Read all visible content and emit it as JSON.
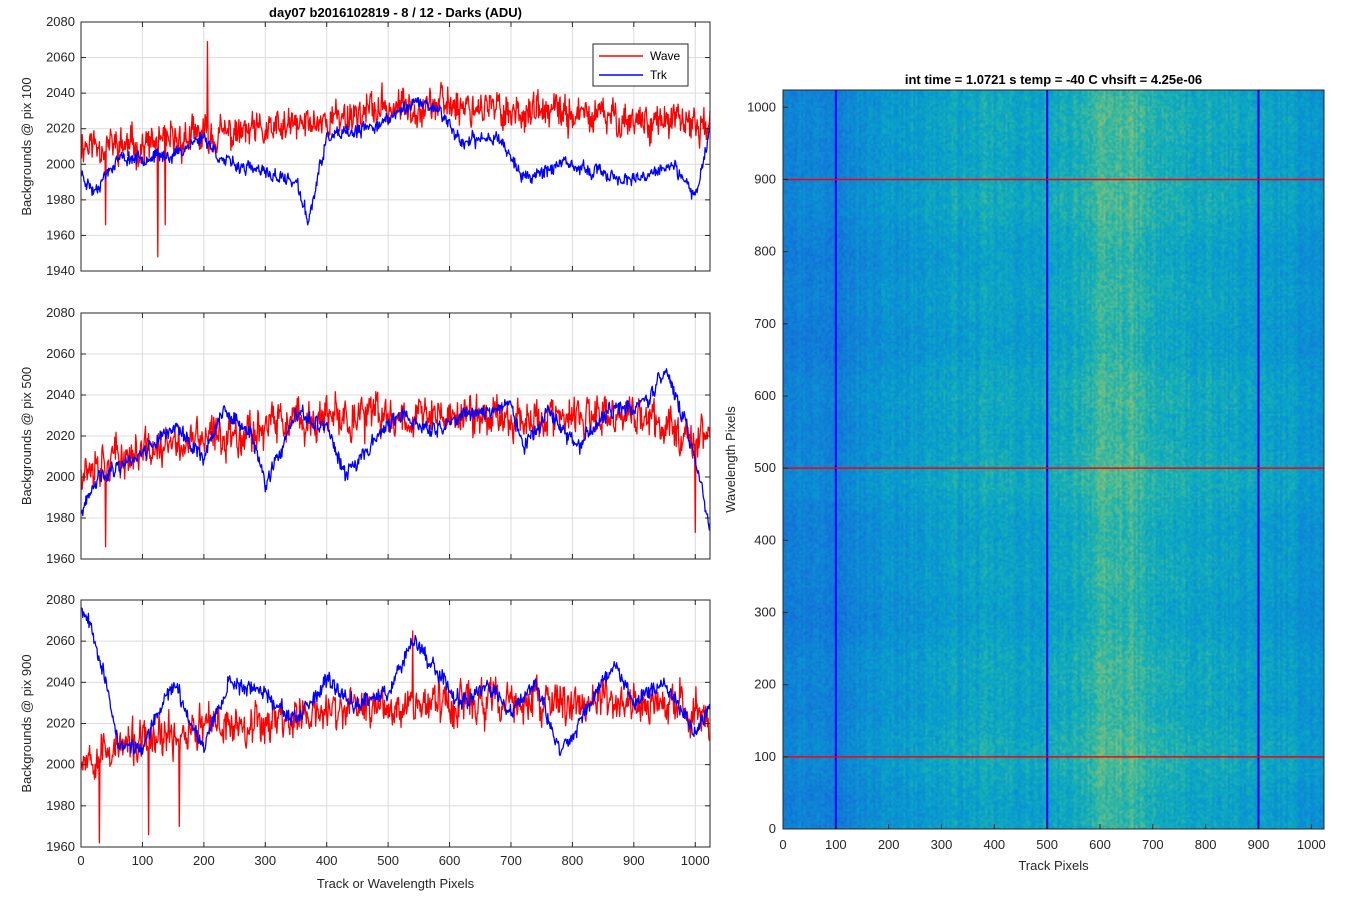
{
  "figure_title": "day07 b2016102819 - 8 / 12 - Darks (ADU)",
  "colors": {
    "wave": "#ff0000",
    "trk": "#0000ff",
    "grid": "#dcdcdc",
    "axis": "#262626"
  },
  "chart_data": [
    {
      "id": "line-pix100",
      "type": "line",
      "title": "day07 b2016102819 - 8 / 12 - Darks (ADU)",
      "xlabel": "",
      "ylabel": "Backgrounds @ pix 100",
      "xlim": [
        0,
        1024
      ],
      "ylim": [
        1940,
        2080
      ],
      "xticks": [
        0,
        100,
        200,
        300,
        400,
        500,
        600,
        700,
        800,
        900,
        1000
      ],
      "xticklabels": [],
      "yticks": [
        1940,
        1960,
        1980,
        2000,
        2020,
        2040,
        2060,
        2080
      ],
      "yticklabels": [
        "1940",
        "1960",
        "1980",
        "2000",
        "2020",
        "2040",
        "2060",
        "2080"
      ],
      "grid": true,
      "legend": {
        "location": "top-right",
        "entries": [
          "Wave",
          "Trk"
        ]
      },
      "series": [
        {
          "name": "Wave",
          "color": "#ff0000",
          "mean": 2022,
          "noise": 13,
          "seed": 11,
          "trend": [
            [
              0,
              2012
            ],
            [
              100,
              2010
            ],
            [
              200,
              2016
            ],
            [
              300,
              2018
            ],
            [
              400,
              2025
            ],
            [
              500,
              2032
            ],
            [
              600,
              2034
            ],
            [
              700,
              2030
            ],
            [
              800,
              2028
            ],
            [
              900,
              2025
            ],
            [
              1024,
              2022
            ]
          ],
          "spikes": [
            [
              206,
              2069
            ],
            [
              125,
              1948
            ],
            [
              137,
              1966
            ],
            [
              40,
              1966
            ]
          ]
        },
        {
          "name": "Trk",
          "color": "#0000ff",
          "mean": 2005,
          "noise": 5,
          "seed": 23,
          "trend": [
            [
              0,
              1995
            ],
            [
              20,
              1985
            ],
            [
              60,
              2003
            ],
            [
              150,
              2005
            ],
            [
              200,
              2016
            ],
            [
              230,
              2002
            ],
            [
              300,
              1995
            ],
            [
              350,
              1990
            ],
            [
              370,
              1968
            ],
            [
              400,
              2015
            ],
            [
              450,
              2018
            ],
            [
              500,
              2025
            ],
            [
              540,
              2035
            ],
            [
              580,
              2032
            ],
            [
              620,
              2012
            ],
            [
              680,
              2016
            ],
            [
              720,
              1992
            ],
            [
              780,
              2000
            ],
            [
              850,
              1995
            ],
            [
              900,
              1990
            ],
            [
              960,
              2000
            ],
            [
              1000,
              1982
            ],
            [
              1024,
              2020
            ]
          ]
        }
      ]
    },
    {
      "id": "line-pix500",
      "type": "line",
      "title": "",
      "xlabel": "",
      "ylabel": "Backgrounds @ pix 500",
      "xlim": [
        0,
        1024
      ],
      "ylim": [
        1960,
        2080
      ],
      "xticks": [
        0,
        100,
        200,
        300,
        400,
        500,
        600,
        700,
        800,
        900,
        1000
      ],
      "xticklabels": [],
      "yticks": [
        1960,
        1980,
        2000,
        2020,
        2040,
        2060,
        2080
      ],
      "yticklabels": [
        "1960",
        "1980",
        "2000",
        "2020",
        "2040",
        "2060",
        "2080"
      ],
      "grid": true,
      "series": [
        {
          "name": "Wave",
          "color": "#ff0000",
          "mean": 2022,
          "noise": 13,
          "seed": 37,
          "trend": [
            [
              0,
              2005
            ],
            [
              100,
              2012
            ],
            [
              200,
              2018
            ],
            [
              300,
              2025
            ],
            [
              400,
              2028
            ],
            [
              500,
              2030
            ],
            [
              600,
              2030
            ],
            [
              700,
              2030
            ],
            [
              800,
              2028
            ],
            [
              900,
              2030
            ],
            [
              1000,
              2020
            ],
            [
              1024,
              2022
            ]
          ],
          "spikes": [
            [
              40,
              1966
            ],
            [
              1000,
              1973
            ]
          ]
        },
        {
          "name": "Trk",
          "color": "#0000ff",
          "mean": 2015,
          "noise": 5,
          "seed": 41,
          "trend": [
            [
              0,
              1982
            ],
            [
              30,
              2000
            ],
            [
              100,
              2012
            ],
            [
              150,
              2025
            ],
            [
              200,
              2010
            ],
            [
              230,
              2032
            ],
            [
              280,
              2020
            ],
            [
              300,
              1995
            ],
            [
              350,
              2030
            ],
            [
              400,
              2025
            ],
            [
              430,
              2000
            ],
            [
              480,
              2020
            ],
            [
              520,
              2030
            ],
            [
              570,
              2022
            ],
            [
              620,
              2030
            ],
            [
              700,
              2035
            ],
            [
              720,
              2015
            ],
            [
              760,
              2030
            ],
            [
              810,
              2015
            ],
            [
              860,
              2032
            ],
            [
              920,
              2036
            ],
            [
              950,
              2052
            ],
            [
              980,
              2030
            ],
            [
              1000,
              2010
            ],
            [
              1024,
              1975
            ]
          ]
        }
      ]
    },
    {
      "id": "line-pix900",
      "type": "line",
      "title": "",
      "xlabel": "Track or Wavelength Pixels",
      "ylabel": "Backgrounds @ pix 900",
      "xlim": [
        0,
        1024
      ],
      "ylim": [
        1960,
        2080
      ],
      "xticks": [
        0,
        100,
        200,
        300,
        400,
        500,
        600,
        700,
        800,
        900,
        1000
      ],
      "xticklabels": [
        "0",
        "100",
        "200",
        "300",
        "400",
        "500",
        "600",
        "700",
        "800",
        "900",
        "1000"
      ],
      "yticks": [
        1960,
        1980,
        2000,
        2020,
        2040,
        2060,
        2080
      ],
      "yticklabels": [
        "1960",
        "1980",
        "2000",
        "2020",
        "2040",
        "2060",
        "2080"
      ],
      "grid": true,
      "series": [
        {
          "name": "Wave",
          "color": "#ff0000",
          "mean": 2022,
          "noise": 13,
          "seed": 53,
          "trend": [
            [
              0,
              2005
            ],
            [
              100,
              2010
            ],
            [
              200,
              2018
            ],
            [
              300,
              2022
            ],
            [
              400,
              2025
            ],
            [
              500,
              2030
            ],
            [
              600,
              2030
            ],
            [
              700,
              2030
            ],
            [
              800,
              2030
            ],
            [
              900,
              2030
            ],
            [
              1024,
              2025
            ]
          ],
          "spikes": [
            [
              30,
              1962
            ],
            [
              110,
              1966
            ],
            [
              160,
              1970
            ],
            [
              540,
              2065
            ]
          ]
        },
        {
          "name": "Trk",
          "color": "#0000ff",
          "mean": 2028,
          "noise": 5,
          "seed": 67,
          "trend": [
            [
              0,
              2078
            ],
            [
              20,
              2065
            ],
            [
              40,
              2040
            ],
            [
              60,
              2010
            ],
            [
              100,
              2008
            ],
            [
              150,
              2040
            ],
            [
              180,
              2020
            ],
            [
              200,
              2010
            ],
            [
              240,
              2040
            ],
            [
              300,
              2035
            ],
            [
              350,
              2020
            ],
            [
              400,
              2040
            ],
            [
              450,
              2030
            ],
            [
              500,
              2035
            ],
            [
              540,
              2062
            ],
            [
              580,
              2045
            ],
            [
              620,
              2030
            ],
            [
              660,
              2040
            ],
            [
              700,
              2025
            ],
            [
              740,
              2040
            ],
            [
              780,
              2005
            ],
            [
              820,
              2025
            ],
            [
              870,
              2050
            ],
            [
              900,
              2030
            ],
            [
              950,
              2040
            ],
            [
              1000,
              2015
            ],
            [
              1024,
              2030
            ]
          ]
        }
      ]
    },
    {
      "id": "heatmap-darks",
      "type": "heatmap",
      "title": "int time = 1.0721 s    temp = -40 C    vhsift = 4.25e-06",
      "xlabel": "Track Pixels",
      "ylabel": "Wavelength Pixels",
      "xlim": [
        0,
        1024
      ],
      "ylim": [
        0,
        1024
      ],
      "xticks": [
        0,
        100,
        200,
        300,
        400,
        500,
        600,
        700,
        800,
        900,
        1000
      ],
      "xticklabels": [
        "0",
        "100",
        "200",
        "300",
        "400",
        "500",
        "600",
        "700",
        "800",
        "900",
        "1000"
      ],
      "yticks": [
        0,
        100,
        200,
        300,
        400,
        500,
        600,
        700,
        800,
        900,
        1000
      ],
      "yticklabels": [
        "0",
        "100",
        "200",
        "300",
        "400",
        "500",
        "600",
        "700",
        "800",
        "900",
        "1000"
      ],
      "colormap": "parula",
      "column_profile": [
        [
          0,
          0.38
        ],
        [
          100,
          0.36
        ],
        [
          200,
          0.45
        ],
        [
          300,
          0.5
        ],
        [
          400,
          0.52
        ],
        [
          500,
          0.5
        ],
        [
          600,
          0.62
        ],
        [
          650,
          0.64
        ],
        [
          700,
          0.56
        ],
        [
          800,
          0.52
        ],
        [
          900,
          0.5
        ],
        [
          1024,
          0.44
        ]
      ],
      "vertical_markers": {
        "color": "#0000ff",
        "x": [
          100,
          500,
          900
        ]
      },
      "horizontal_markers": {
        "color": "#ff0000",
        "y": [
          100,
          500,
          900
        ]
      }
    }
  ]
}
